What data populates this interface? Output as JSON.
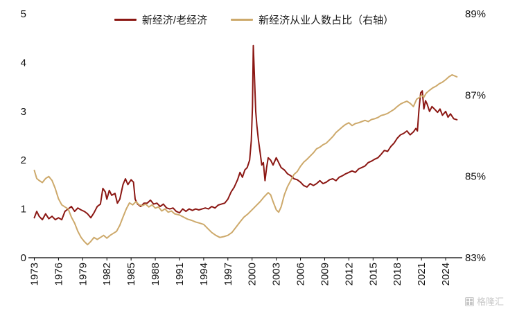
{
  "legend": {
    "series1": "新经济/老经济",
    "series2": "新经济从业人数占比（右轴）"
  },
  "watermark": {
    "text": "格隆汇",
    "icon": "gelonghui-grid-logo"
  },
  "chart_data": {
    "type": "line",
    "title": "",
    "grid": false,
    "legend_position": "top",
    "x_ticks": [
      "1973",
      "1976",
      "1979",
      "1982",
      "1985",
      "1988",
      "1991",
      "1994",
      "1997",
      "2000",
      "2003",
      "2006",
      "2009",
      "2012",
      "2015",
      "2018",
      "2021",
      "2024"
    ],
    "x_range": [
      1972.7,
      2025.8
    ],
    "y_left": {
      "min": 0,
      "max": 5,
      "ticks": [
        "0",
        "1",
        "2",
        "3",
        "4",
        "5"
      ],
      "tick_values": [
        0,
        1,
        2,
        3,
        4,
        5
      ]
    },
    "y_right": {
      "min": 83,
      "max": 89,
      "ticks": [
        "83%",
        "85%",
        "87%",
        "89%"
      ],
      "tick_values": [
        83,
        85,
        87,
        89
      ]
    },
    "series": [
      {
        "name": "新经济/老经济",
        "axis": "left",
        "color": "#8B1713",
        "points": [
          [
            1973.0,
            0.82
          ],
          [
            1973.3,
            0.95
          ],
          [
            1973.6,
            0.85
          ],
          [
            1974.0,
            0.78
          ],
          [
            1974.4,
            0.9
          ],
          [
            1974.8,
            0.8
          ],
          [
            1975.2,
            0.85
          ],
          [
            1975.6,
            0.78
          ],
          [
            1976.0,
            0.82
          ],
          [
            1976.4,
            0.78
          ],
          [
            1976.8,
            0.95
          ],
          [
            1977.2,
            1.0
          ],
          [
            1977.6,
            1.05
          ],
          [
            1978.0,
            0.95
          ],
          [
            1978.4,
            1.02
          ],
          [
            1978.8,
            0.98
          ],
          [
            1979.2,
            0.95
          ],
          [
            1979.6,
            0.9
          ],
          [
            1980.0,
            0.82
          ],
          [
            1980.4,
            0.92
          ],
          [
            1980.8,
            1.05
          ],
          [
            1981.2,
            1.1
          ],
          [
            1981.5,
            1.42
          ],
          [
            1981.8,
            1.35
          ],
          [
            1982.0,
            1.2
          ],
          [
            1982.3,
            1.38
          ],
          [
            1982.6,
            1.28
          ],
          [
            1983.0,
            1.32
          ],
          [
            1983.3,
            1.12
          ],
          [
            1983.6,
            1.2
          ],
          [
            1984.0,
            1.5
          ],
          [
            1984.3,
            1.62
          ],
          [
            1984.6,
            1.5
          ],
          [
            1985.0,
            1.6
          ],
          [
            1985.3,
            1.55
          ],
          [
            1985.5,
            1.2
          ],
          [
            1985.8,
            1.1
          ],
          [
            1986.2,
            1.05
          ],
          [
            1986.6,
            1.12
          ],
          [
            1987.0,
            1.12
          ],
          [
            1987.4,
            1.18
          ],
          [
            1987.8,
            1.1
          ],
          [
            1988.2,
            1.12
          ],
          [
            1988.6,
            1.05
          ],
          [
            1989.0,
            1.1
          ],
          [
            1989.4,
            1.02
          ],
          [
            1989.8,
            1.0
          ],
          [
            1990.2,
            1.02
          ],
          [
            1990.6,
            0.95
          ],
          [
            1991.0,
            0.92
          ],
          [
            1991.4,
            1.0
          ],
          [
            1991.8,
            0.95
          ],
          [
            1992.2,
            1.0
          ],
          [
            1992.6,
            0.97
          ],
          [
            1993.0,
            1.0
          ],
          [
            1993.4,
            0.98
          ],
          [
            1993.8,
            1.0
          ],
          [
            1994.2,
            1.02
          ],
          [
            1994.6,
            1.0
          ],
          [
            1995.0,
            1.05
          ],
          [
            1995.4,
            1.02
          ],
          [
            1995.8,
            1.08
          ],
          [
            1996.2,
            1.1
          ],
          [
            1996.6,
            1.12
          ],
          [
            1997.0,
            1.2
          ],
          [
            1997.4,
            1.35
          ],
          [
            1997.8,
            1.45
          ],
          [
            1998.2,
            1.6
          ],
          [
            1998.5,
            1.75
          ],
          [
            1998.8,
            1.65
          ],
          [
            1999.1,
            1.8
          ],
          [
            1999.4,
            1.85
          ],
          [
            1999.7,
            2.0
          ],
          [
            1999.9,
            2.4
          ],
          [
            2000.05,
            3.1
          ],
          [
            2000.15,
            4.35
          ],
          [
            2000.3,
            3.7
          ],
          [
            2000.45,
            3.0
          ],
          [
            2000.6,
            2.7
          ],
          [
            2000.8,
            2.4
          ],
          [
            2001.0,
            2.15
          ],
          [
            2001.2,
            1.9
          ],
          [
            2001.4,
            1.95
          ],
          [
            2001.6,
            1.58
          ],
          [
            2001.8,
            1.85
          ],
          [
            2002.0,
            2.05
          ],
          [
            2002.3,
            2.0
          ],
          [
            2002.6,
            1.9
          ],
          [
            2003.0,
            2.05
          ],
          [
            2003.3,
            1.95
          ],
          [
            2003.6,
            1.85
          ],
          [
            2004.0,
            1.8
          ],
          [
            2004.4,
            1.72
          ],
          [
            2004.8,
            1.68
          ],
          [
            2005.2,
            1.62
          ],
          [
            2005.6,
            1.6
          ],
          [
            2006.0,
            1.55
          ],
          [
            2006.4,
            1.48
          ],
          [
            2006.8,
            1.45
          ],
          [
            2007.2,
            1.52
          ],
          [
            2007.6,
            1.48
          ],
          [
            2008.0,
            1.52
          ],
          [
            2008.4,
            1.58
          ],
          [
            2008.8,
            1.52
          ],
          [
            2009.2,
            1.55
          ],
          [
            2009.6,
            1.6
          ],
          [
            2010.0,
            1.62
          ],
          [
            2010.4,
            1.58
          ],
          [
            2010.8,
            1.65
          ],
          [
            2011.2,
            1.68
          ],
          [
            2011.6,
            1.72
          ],
          [
            2012.0,
            1.75
          ],
          [
            2012.4,
            1.78
          ],
          [
            2012.8,
            1.75
          ],
          [
            2013.2,
            1.82
          ],
          [
            2013.6,
            1.85
          ],
          [
            2014.0,
            1.88
          ],
          [
            2014.4,
            1.95
          ],
          [
            2014.8,
            1.98
          ],
          [
            2015.2,
            2.02
          ],
          [
            2015.6,
            2.05
          ],
          [
            2016.0,
            2.12
          ],
          [
            2016.4,
            2.2
          ],
          [
            2016.8,
            2.18
          ],
          [
            2017.2,
            2.28
          ],
          [
            2017.6,
            2.35
          ],
          [
            2018.0,
            2.45
          ],
          [
            2018.4,
            2.52
          ],
          [
            2018.8,
            2.55
          ],
          [
            2019.2,
            2.6
          ],
          [
            2019.6,
            2.52
          ],
          [
            2020.0,
            2.58
          ],
          [
            2020.3,
            2.65
          ],
          [
            2020.5,
            2.6
          ],
          [
            2020.7,
            3.05
          ],
          [
            2020.9,
            3.38
          ],
          [
            2021.1,
            3.42
          ],
          [
            2021.3,
            3.05
          ],
          [
            2021.5,
            3.22
          ],
          [
            2021.7,
            3.15
          ],
          [
            2022.0,
            3.0
          ],
          [
            2022.3,
            3.1
          ],
          [
            2022.6,
            3.05
          ],
          [
            2023.0,
            2.98
          ],
          [
            2023.3,
            3.05
          ],
          [
            2023.6,
            2.92
          ],
          [
            2024.0,
            3.0
          ],
          [
            2024.3,
            2.88
          ],
          [
            2024.6,
            2.95
          ],
          [
            2025.0,
            2.85
          ],
          [
            2025.4,
            2.83
          ]
        ]
      },
      {
        "name": "新经济从业人数占比（右轴）",
        "axis": "right",
        "color": "#CDA96B",
        "points": [
          [
            1973.0,
            85.15
          ],
          [
            1973.3,
            84.95
          ],
          [
            1973.6,
            84.9
          ],
          [
            1974.0,
            84.85
          ],
          [
            1974.4,
            84.95
          ],
          [
            1974.8,
            85.0
          ],
          [
            1975.2,
            84.9
          ],
          [
            1975.6,
            84.7
          ],
          [
            1976.0,
            84.45
          ],
          [
            1976.4,
            84.3
          ],
          [
            1976.8,
            84.25
          ],
          [
            1977.2,
            84.2
          ],
          [
            1977.6,
            84.0
          ],
          [
            1978.0,
            83.85
          ],
          [
            1978.4,
            83.65
          ],
          [
            1978.8,
            83.5
          ],
          [
            1979.2,
            83.4
          ],
          [
            1979.6,
            83.32
          ],
          [
            1980.0,
            83.4
          ],
          [
            1980.4,
            83.5
          ],
          [
            1980.8,
            83.45
          ],
          [
            1981.2,
            83.5
          ],
          [
            1981.6,
            83.55
          ],
          [
            1982.0,
            83.48
          ],
          [
            1982.4,
            83.55
          ],
          [
            1982.8,
            83.6
          ],
          [
            1983.2,
            83.65
          ],
          [
            1983.6,
            83.8
          ],
          [
            1984.0,
            84.0
          ],
          [
            1984.4,
            84.2
          ],
          [
            1984.8,
            84.35
          ],
          [
            1985.2,
            84.3
          ],
          [
            1985.6,
            84.38
          ],
          [
            1986.0,
            84.3
          ],
          [
            1986.4,
            84.28
          ],
          [
            1986.8,
            84.32
          ],
          [
            1987.2,
            84.25
          ],
          [
            1987.6,
            84.3
          ],
          [
            1988.0,
            84.22
          ],
          [
            1988.4,
            84.25
          ],
          [
            1988.8,
            84.15
          ],
          [
            1989.2,
            84.2
          ],
          [
            1989.6,
            84.12
          ],
          [
            1990.0,
            84.15
          ],
          [
            1990.4,
            84.08
          ],
          [
            1991.0,
            84.05
          ],
          [
            1991.5,
            84.0
          ],
          [
            1992.0,
            83.95
          ],
          [
            1992.5,
            83.92
          ],
          [
            1993.0,
            83.88
          ],
          [
            1993.5,
            83.85
          ],
          [
            1994.0,
            83.82
          ],
          [
            1994.5,
            83.72
          ],
          [
            1995.0,
            83.62
          ],
          [
            1995.5,
            83.55
          ],
          [
            1996.0,
            83.5
          ],
          [
            1996.5,
            83.52
          ],
          [
            1997.0,
            83.55
          ],
          [
            1997.5,
            83.62
          ],
          [
            1998.0,
            83.75
          ],
          [
            1998.5,
            83.88
          ],
          [
            1999.0,
            84.0
          ],
          [
            1999.5,
            84.08
          ],
          [
            2000.0,
            84.18
          ],
          [
            2000.5,
            84.28
          ],
          [
            2001.0,
            84.38
          ],
          [
            2001.5,
            84.5
          ],
          [
            2002.0,
            84.6
          ],
          [
            2002.3,
            84.55
          ],
          [
            2002.6,
            84.38
          ],
          [
            2003.0,
            84.18
          ],
          [
            2003.3,
            84.12
          ],
          [
            2003.6,
            84.25
          ],
          [
            2004.0,
            84.55
          ],
          [
            2004.4,
            84.75
          ],
          [
            2004.8,
            84.9
          ],
          [
            2005.2,
            85.05
          ],
          [
            2005.6,
            85.12
          ],
          [
            2006.0,
            85.25
          ],
          [
            2006.4,
            85.35
          ],
          [
            2006.8,
            85.42
          ],
          [
            2007.2,
            85.5
          ],
          [
            2007.6,
            85.58
          ],
          [
            2008.0,
            85.68
          ],
          [
            2008.4,
            85.72
          ],
          [
            2008.8,
            85.78
          ],
          [
            2009.2,
            85.82
          ],
          [
            2009.6,
            85.9
          ],
          [
            2010.0,
            85.98
          ],
          [
            2010.4,
            86.08
          ],
          [
            2010.8,
            86.15
          ],
          [
            2011.2,
            86.22
          ],
          [
            2011.6,
            86.28
          ],
          [
            2012.0,
            86.32
          ],
          [
            2012.4,
            86.25
          ],
          [
            2012.8,
            86.3
          ],
          [
            2013.2,
            86.32
          ],
          [
            2013.6,
            86.35
          ],
          [
            2014.0,
            86.38
          ],
          [
            2014.4,
            86.35
          ],
          [
            2014.8,
            86.4
          ],
          [
            2015.2,
            86.42
          ],
          [
            2015.6,
            86.45
          ],
          [
            2016.0,
            86.5
          ],
          [
            2016.4,
            86.52
          ],
          [
            2016.8,
            86.55
          ],
          [
            2017.2,
            86.6
          ],
          [
            2017.6,
            86.65
          ],
          [
            2018.0,
            86.72
          ],
          [
            2018.4,
            86.78
          ],
          [
            2018.8,
            86.82
          ],
          [
            2019.2,
            86.85
          ],
          [
            2019.6,
            86.8
          ],
          [
            2020.0,
            86.72
          ],
          [
            2020.4,
            86.9
          ],
          [
            2020.8,
            86.95
          ],
          [
            2021.0,
            87.0
          ],
          [
            2021.3,
            86.95
          ],
          [
            2021.6,
            87.05
          ],
          [
            2022.0,
            87.12
          ],
          [
            2022.4,
            87.18
          ],
          [
            2022.8,
            87.22
          ],
          [
            2023.2,
            87.28
          ],
          [
            2023.6,
            87.32
          ],
          [
            2024.0,
            87.38
          ],
          [
            2024.4,
            87.45
          ],
          [
            2024.8,
            87.5
          ],
          [
            2025.4,
            87.45
          ]
        ]
      }
    ]
  }
}
